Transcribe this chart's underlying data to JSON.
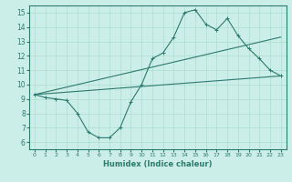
{
  "title": "",
  "xlabel": "Humidex (Indice chaleur)",
  "bg_color": "#cceee8",
  "grid_color": "#aaddcc",
  "line_color": "#2d7a6e",
  "xlim": [
    -0.5,
    23.5
  ],
  "ylim": [
    5.5,
    15.5
  ],
  "xticks": [
    0,
    1,
    2,
    3,
    4,
    5,
    6,
    7,
    8,
    9,
    10,
    11,
    12,
    13,
    14,
    15,
    16,
    17,
    18,
    19,
    20,
    21,
    22,
    23
  ],
  "yticks": [
    6,
    7,
    8,
    9,
    10,
    11,
    12,
    13,
    14,
    15
  ],
  "line1_x": [
    0,
    1,
    2,
    3,
    4,
    5,
    6,
    7,
    8,
    9,
    10,
    11,
    12,
    13,
    14,
    15,
    16,
    17,
    18,
    19,
    20,
    21,
    22,
    23
  ],
  "line1_y": [
    9.3,
    9.1,
    9.0,
    8.9,
    8.0,
    6.7,
    6.3,
    6.3,
    7.0,
    8.8,
    10.0,
    11.8,
    12.2,
    13.3,
    15.0,
    15.2,
    14.2,
    13.8,
    14.6,
    13.4,
    12.5,
    11.8,
    11.0,
    10.6
  ],
  "line2_x": [
    0,
    23
  ],
  "line2_y": [
    9.3,
    13.3
  ],
  "line3_x": [
    0,
    23
  ],
  "line3_y": [
    9.3,
    10.6
  ],
  "marker": "+"
}
